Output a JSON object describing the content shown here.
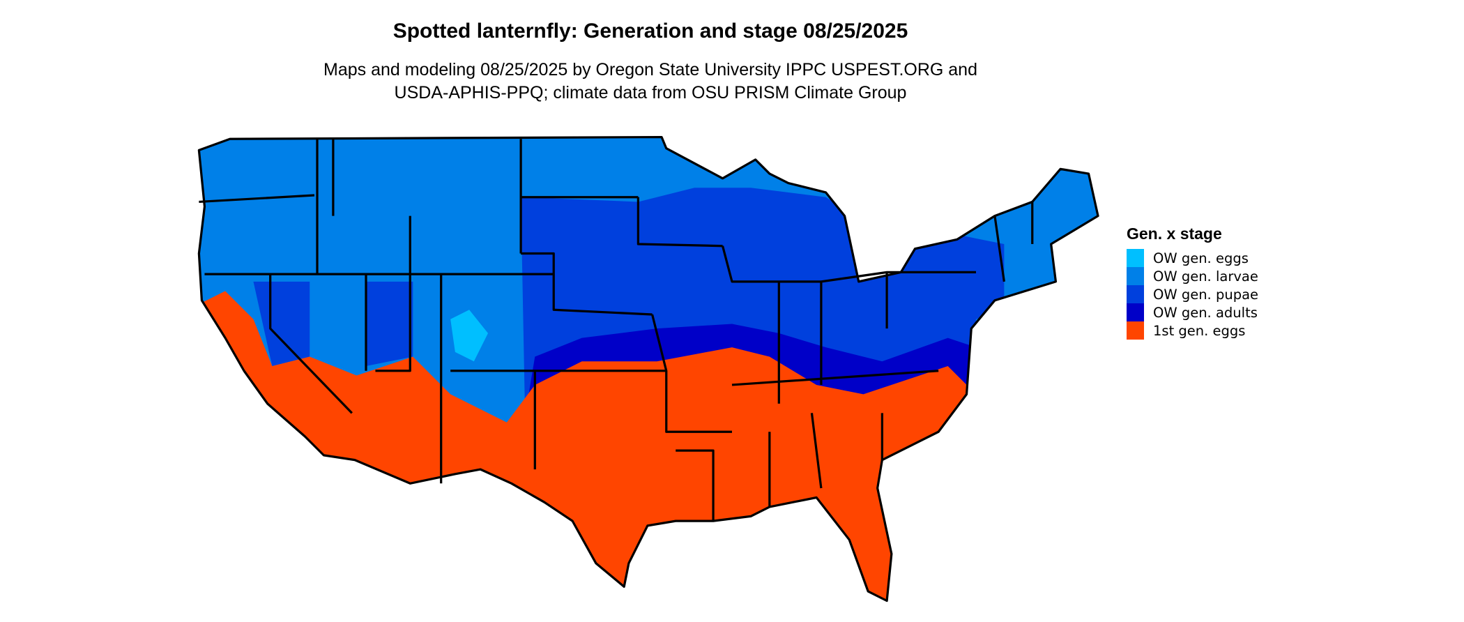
{
  "title": "Spotted lanternfly: Generation and stage 08/25/2025",
  "subtitle_lines": [
    "Maps and modeling 08/25/2025 by Oregon State University IPPC USPEST.ORG and",
    "USDA-APHIS-PPQ; climate data from OSU PRISM Climate Group"
  ],
  "map": {
    "region": "Contiguous United States",
    "state_borders": true
  },
  "legend": {
    "title": "Gen. x stage",
    "items": [
      {
        "label": "OW gen. eggs",
        "color": "#00BFFF"
      },
      {
        "label": "OW gen. larvae",
        "color": "#0080E8"
      },
      {
        "label": "OW gen. pupae",
        "color": "#0040DD"
      },
      {
        "label": "OW gen. adults",
        "color": "#0000C8"
      },
      {
        "label": "1st gen. eggs",
        "color": "#FF4500"
      }
    ]
  }
}
